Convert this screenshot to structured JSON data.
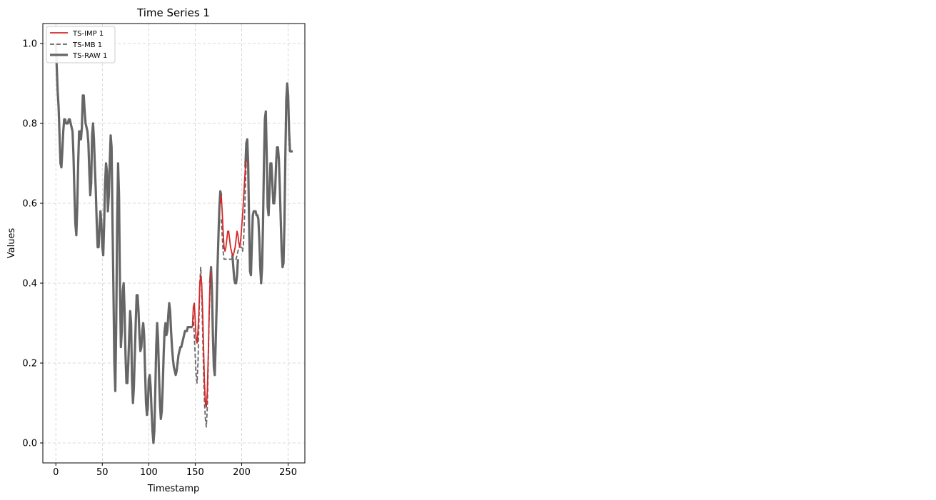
{
  "chart_data": {
    "type": "line",
    "title": "Time Series 1",
    "xlabel": "Timestamp",
    "ylabel": "Values",
    "xlim": [
      -14,
      268
    ],
    "ylim": [
      -0.05,
      1.05
    ],
    "xticks": [
      0,
      50,
      100,
      150,
      200,
      250
    ],
    "yticks": [
      0.0,
      0.2,
      0.4,
      0.6,
      0.8,
      1.0
    ],
    "xtick_labels": [
      "0",
      "50",
      "100",
      "150",
      "200",
      "250"
    ],
    "ytick_labels": [
      "0.0",
      "0.2",
      "0.4",
      "0.6",
      "0.8",
      "1.0"
    ],
    "grid": true,
    "legend_position": "top-left",
    "series": [
      {
        "name": "TS-IMP 1",
        "color": "#d62728",
        "style": "solid",
        "segments": [
          {
            "x": [
              147,
              148,
              149,
              150,
              151,
              152,
              153,
              154,
              155,
              156,
              157,
              158,
              159,
              160,
              161,
              162,
              163,
              164,
              165,
              166,
              167
            ],
            "y": [
              0.29,
              0.34,
              0.35,
              0.31,
              0.26,
              0.25,
              0.28,
              0.33,
              0.4,
              0.42,
              0.4,
              0.33,
              0.24,
              0.15,
              0.1,
              0.09,
              0.13,
              0.22,
              0.33,
              0.41,
              0.43
            ]
          },
          {
            "x": [
              177,
              178,
              179,
              180,
              181,
              182,
              183,
              184,
              185,
              186,
              187,
              188,
              189,
              190,
              191,
              192,
              193,
              194,
              195,
              196,
              197,
              198,
              199,
              200,
              201,
              202,
              203,
              204,
              205
            ],
            "y": [
              0.6,
              0.62,
              0.58,
              0.53,
              0.49,
              0.48,
              0.49,
              0.51,
              0.53,
              0.53,
              0.51,
              0.49,
              0.48,
              0.47,
              0.47,
              0.48,
              0.49,
              0.51,
              0.53,
              0.52,
              0.5,
              0.49,
              0.51,
              0.54,
              0.57,
              0.61,
              0.65,
              0.69,
              0.71
            ]
          }
        ]
      },
      {
        "name": "TS-MB 1",
        "color": "#666666",
        "style": "dashed",
        "segments": [
          {
            "x": [
              148,
              149,
              150,
              151,
              152,
              153,
              154,
              155,
              156,
              157,
              158,
              159,
              160,
              161,
              162,
              163,
              164,
              165,
              166
            ],
            "y": [
              0.32,
              0.27,
              0.22,
              0.17,
              0.15,
              0.2,
              0.3,
              0.4,
              0.44,
              0.38,
              0.28,
              0.18,
              0.1,
              0.06,
              0.04,
              0.09,
              0.2,
              0.32,
              0.4
            ]
          },
          {
            "x": [
              178,
              179,
              180,
              181,
              182,
              183,
              184,
              185,
              186,
              187,
              188,
              189,
              190,
              191,
              192,
              193,
              194,
              195,
              196,
              197,
              198,
              199,
              200,
              201,
              202,
              203,
              204,
              205,
              206,
              207
            ],
            "y": [
              0.56,
              0.52,
              0.48,
              0.46,
              0.46,
              0.46,
              0.46,
              0.46,
              0.46,
              0.46,
              0.46,
              0.46,
              0.46,
              0.46,
              0.46,
              0.46,
              0.46,
              0.47,
              0.48,
              0.49,
              0.49,
              0.49,
              0.49,
              0.48,
              0.5,
              0.56,
              0.64,
              0.71,
              0.72,
              0.7
            ]
          }
        ]
      },
      {
        "name": "TS-RAW 1",
        "color": "#666666",
        "style": "solid-thick",
        "segments": [
          {
            "x": [
              0,
              1,
              2,
              3,
              4,
              5,
              6,
              7,
              8,
              9,
              10,
              11,
              12,
              13,
              14,
              15,
              16,
              17,
              18,
              19,
              20,
              21,
              22,
              23,
              24,
              25,
              26,
              27,
              28,
              29,
              30,
              31,
              32,
              33,
              34,
              35,
              36,
              37,
              38,
              39,
              40,
              41,
              42,
              43,
              44,
              45,
              46,
              47,
              48,
              49,
              50,
              51,
              52,
              53,
              54,
              55,
              56,
              57,
              58,
              59,
              60,
              61,
              62,
              63,
              64,
              65,
              66,
              67,
              68,
              69,
              70,
              71,
              72,
              73,
              74,
              75,
              76,
              77,
              78,
              79,
              80,
              81,
              82,
              83,
              84,
              85,
              86,
              87,
              88,
              89,
              90,
              91,
              92,
              93,
              94,
              95,
              96,
              97,
              98,
              99,
              100,
              101,
              102,
              103,
              104,
              105,
              106,
              107,
              108,
              109,
              110,
              111,
              112,
              113,
              114,
              115,
              116,
              117,
              118,
              119,
              120,
              121,
              122,
              123,
              124,
              125,
              126,
              127,
              128,
              129,
              130,
              131,
              132,
              133,
              134,
              135,
              136,
              137,
              138,
              139,
              140,
              141,
              142,
              143,
              144,
              145,
              146,
              147
            ],
            "y": [
              1.0,
              0.94,
              0.88,
              0.84,
              0.77,
              0.7,
              0.69,
              0.73,
              0.78,
              0.81,
              0.81,
              0.8,
              0.8,
              0.8,
              0.81,
              0.81,
              0.8,
              0.79,
              0.78,
              0.72,
              0.63,
              0.55,
              0.52,
              0.59,
              0.7,
              0.78,
              0.78,
              0.76,
              0.79,
              0.87,
              0.87,
              0.83,
              0.8,
              0.79,
              0.78,
              0.75,
              0.68,
              0.62,
              0.65,
              0.77,
              0.8,
              0.76,
              0.69,
              0.63,
              0.55,
              0.49,
              0.49,
              0.54,
              0.58,
              0.55,
              0.49,
              0.47,
              0.55,
              0.65,
              0.7,
              0.68,
              0.58,
              0.62,
              0.7,
              0.77,
              0.74,
              0.55,
              0.38,
              0.2,
              0.13,
              0.3,
              0.55,
              0.7,
              0.62,
              0.4,
              0.24,
              0.28,
              0.38,
              0.4,
              0.33,
              0.22,
              0.15,
              0.15,
              0.2,
              0.27,
              0.33,
              0.3,
              0.16,
              0.1,
              0.14,
              0.22,
              0.3,
              0.37,
              0.37,
              0.33,
              0.27,
              0.23,
              0.24,
              0.28,
              0.3,
              0.27,
              0.18,
              0.1,
              0.07,
              0.09,
              0.16,
              0.17,
              0.14,
              0.08,
              0.03,
              0.0,
              0.03,
              0.13,
              0.24,
              0.3,
              0.26,
              0.17,
              0.1,
              0.06,
              0.08,
              0.14,
              0.22,
              0.28,
              0.3,
              0.27,
              0.28,
              0.32,
              0.35,
              0.33,
              0.28,
              0.24,
              0.21,
              0.19,
              0.18,
              0.17,
              0.18,
              0.2,
              0.22,
              0.23,
              0.24,
              0.24,
              0.25,
              0.26,
              0.27,
              0.28,
              0.28,
              0.28,
              0.29,
              0.29,
              0.29,
              0.29,
              0.29,
              0.29
            ]
          },
          {
            "x": [
              166,
              167,
              168,
              169,
              170,
              171,
              172,
              173,
              174,
              175,
              176,
              177,
              178
            ],
            "y": [
              0.4,
              0.44,
              0.38,
              0.27,
              0.19,
              0.17,
              0.25,
              0.34,
              0.44,
              0.52,
              0.59,
              0.63,
              0.62
            ]
          },
          {
            "x": [
              190,
              191,
              192,
              193,
              194,
              195,
              196
            ],
            "y": [
              0.47,
              0.44,
              0.41,
              0.4,
              0.4,
              0.42,
              0.46
            ]
          },
          {
            "x": [
              204,
              205,
              206,
              207,
              208,
              209,
              210,
              211,
              212,
              213,
              214,
              215,
              216,
              217,
              218,
              219,
              220,
              221,
              222,
              223,
              224,
              225,
              226,
              227,
              228,
              229,
              230,
              231,
              232,
              233,
              234,
              235,
              236,
              237,
              238,
              239,
              240,
              241,
              242,
              243,
              244,
              245,
              246,
              247,
              248,
              249,
              250,
              251,
              252,
              253,
              254,
              255
            ],
            "y": [
              0.69,
              0.75,
              0.76,
              0.7,
              0.55,
              0.43,
              0.42,
              0.5,
              0.57,
              0.58,
              0.58,
              0.58,
              0.57,
              0.57,
              0.56,
              0.51,
              0.44,
              0.4,
              0.44,
              0.55,
              0.7,
              0.81,
              0.83,
              0.72,
              0.59,
              0.57,
              0.63,
              0.7,
              0.7,
              0.65,
              0.6,
              0.6,
              0.63,
              0.7,
              0.74,
              0.74,
              0.71,
              0.64,
              0.56,
              0.48,
              0.44,
              0.45,
              0.55,
              0.72,
              0.86,
              0.9,
              0.87,
              0.78,
              0.73,
              0.73,
              0.73,
              0.73
            ]
          }
        ]
      }
    ]
  }
}
